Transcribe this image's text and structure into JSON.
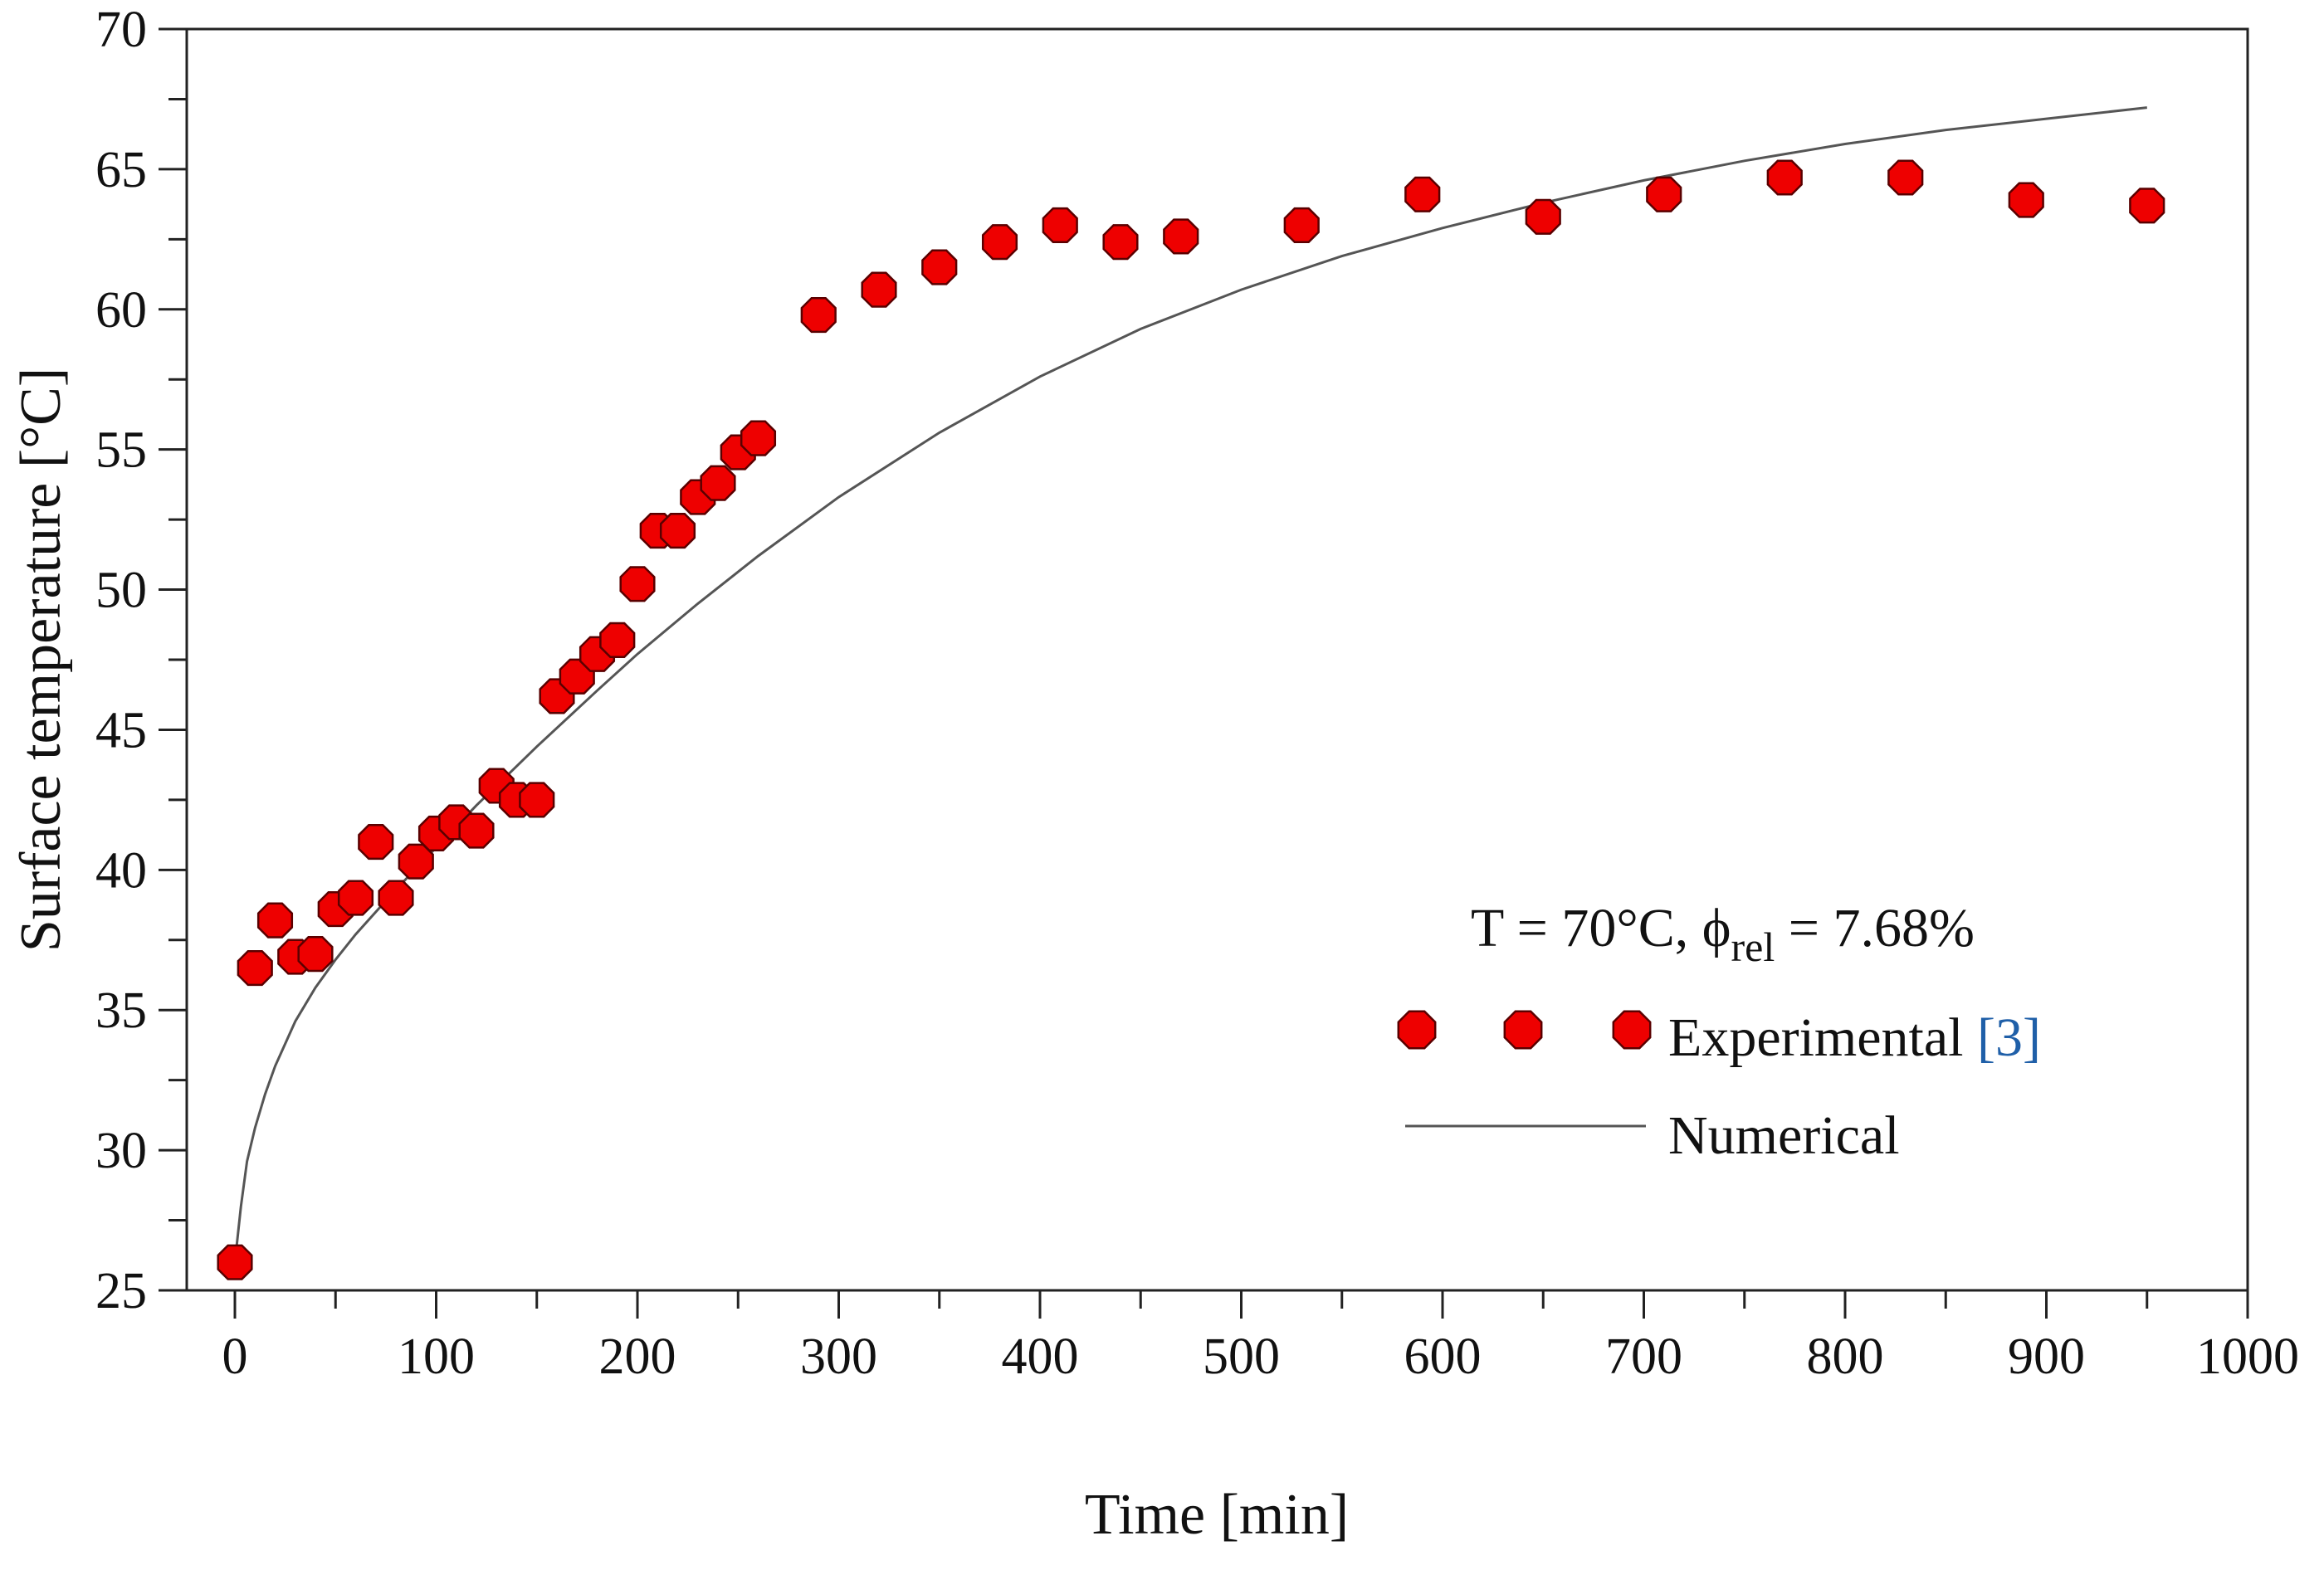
{
  "chart_data": {
    "type": "scatter",
    "title": "",
    "xlabel": "Time [min]",
    "ylabel": "Surface temperature [°C]",
    "xlim": [
      0,
      1000
    ],
    "ylim": [
      25,
      70
    ],
    "x_ticks": [
      0,
      100,
      200,
      300,
      400,
      500,
      600,
      700,
      800,
      900,
      1000
    ],
    "y_ticks": [
      25,
      30,
      35,
      40,
      45,
      50,
      55,
      60,
      65,
      70
    ],
    "x_tick_labels": [
      "0",
      "100",
      "200",
      "300",
      "400",
      "500",
      "600",
      "700",
      "800",
      "900",
      "1000"
    ],
    "y_tick_labels": [
      "25",
      "30",
      "35",
      "40",
      "45",
      "50",
      "55",
      "60",
      "65",
      "70"
    ],
    "grid": false,
    "annotation": {
      "prefix": "T = 70°C, ",
      "phi_symbol": "ϕ",
      "phi_subscript": "rel",
      "suffix": " = 7.68%"
    },
    "legend": {
      "placement": "bottom-right",
      "entries": [
        {
          "label": "Experimental ",
          "ref": "[3]",
          "marker": "circle"
        },
        {
          "label": "Numerical",
          "marker": "line"
        }
      ]
    },
    "colors": {
      "marker_fill": "#ee0000",
      "marker_edge": "#5a0000",
      "line": "#555555",
      "reference": "#1f5fa8"
    },
    "series": [
      {
        "name": "Experimental",
        "kind": "scatter",
        "x": [
          0,
          10,
          20,
          30,
          40,
          50,
          60,
          70,
          80,
          90,
          100,
          110,
          120,
          130,
          140,
          150,
          160,
          170,
          180,
          190,
          200,
          210,
          220,
          230,
          240,
          250,
          260,
          290,
          320,
          350,
          380,
          410,
          440,
          470,
          530,
          590,
          650,
          710,
          770,
          830,
          890,
          950
        ],
        "y": [
          26.0,
          36.5,
          38.2,
          36.9,
          37.0,
          38.6,
          39.0,
          41.0,
          39.0,
          40.3,
          41.3,
          41.7,
          41.4,
          43.0,
          42.5,
          42.5,
          46.2,
          46.9,
          47.7,
          48.2,
          50.2,
          52.1,
          52.1,
          53.3,
          53.8,
          54.9,
          55.4,
          59.8,
          60.7,
          61.5,
          62.4,
          63.0,
          62.4,
          62.6,
          63.0,
          64.1,
          63.3,
          64.1,
          64.7,
          64.7,
          63.9,
          63.7
        ]
      },
      {
        "name": "Numerical",
        "kind": "line",
        "x": [
          0,
          3,
          6,
          10,
          15,
          20,
          30,
          40,
          50,
          60,
          80,
          100,
          120,
          150,
          180,
          200,
          230,
          260,
          300,
          350,
          400,
          450,
          500,
          550,
          600,
          650,
          700,
          750,
          800,
          850,
          900,
          950
        ],
        "y": [
          26.0,
          28.0,
          29.6,
          30.8,
          32.0,
          33.0,
          34.6,
          35.8,
          36.8,
          37.7,
          39.3,
          40.8,
          42.3,
          44.4,
          46.4,
          47.7,
          49.5,
          51.2,
          53.3,
          55.6,
          57.6,
          59.3,
          60.7,
          61.9,
          62.9,
          63.8,
          64.6,
          65.3,
          65.9,
          66.4,
          66.8,
          67.2
        ]
      }
    ]
  }
}
